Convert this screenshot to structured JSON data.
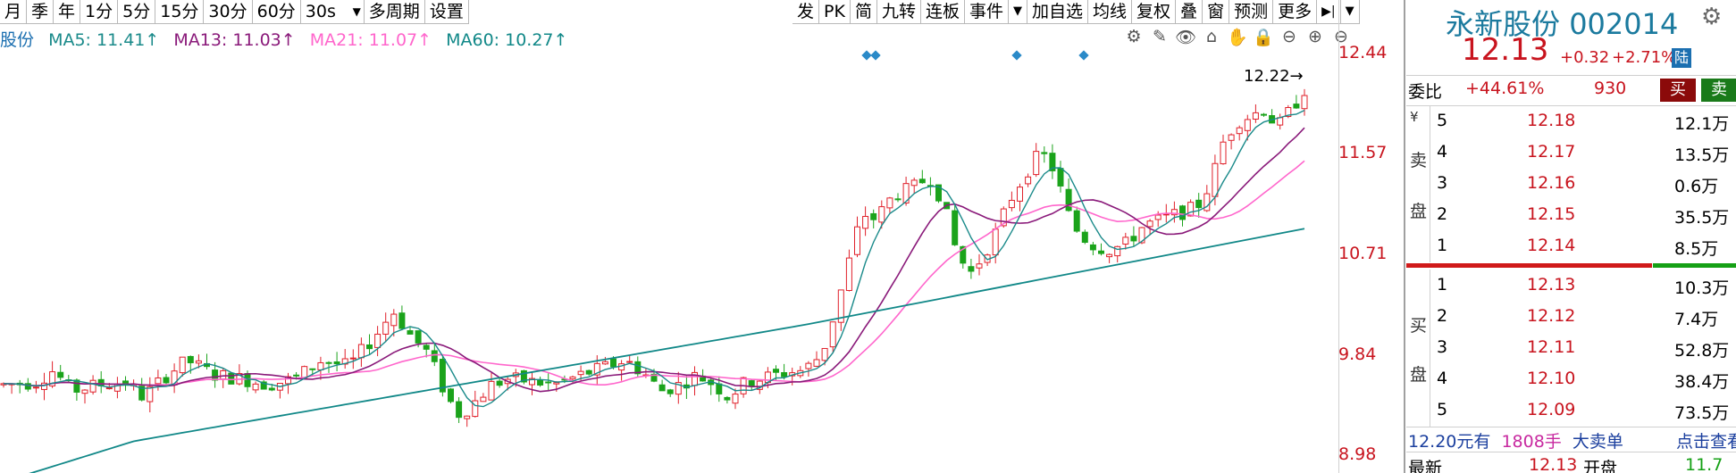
{
  "toolbar": {
    "left": [
      "月",
      "季",
      "年",
      "1分",
      "5分",
      "15分",
      "30分",
      "60分"
    ],
    "select_value": "30s",
    "after_select": [
      "多周期",
      "设置"
    ],
    "right": [
      "发",
      "PK",
      "简",
      "九转",
      "连板",
      "事件",
      "▼",
      "加自选",
      "均线",
      "复权",
      "叠",
      "窗",
      "预测",
      "更多",
      "▶|",
      "▼"
    ]
  },
  "indicators": {
    "name": "股份",
    "ma5": "MA5: 11.41↑",
    "ma13": "MA13: 11.03↑",
    "ma21": "MA21: 11.07↑",
    "ma60": "MA60: 10.27↑"
  },
  "chart_tools": [
    "⚙",
    "✎",
    "👁",
    "⌂",
    "✋",
    "🔒",
    "⊖",
    "⊕",
    "⊖"
  ],
  "chart_data": {
    "type": "candlestick",
    "y_axis_labels": [
      "12.44",
      "11.57",
      "10.71",
      "9.84",
      "8.98"
    ],
    "ylim": [
      8.98,
      12.44
    ],
    "last_price_label": "12.22",
    "ma5_color": "#1a8a8a",
    "ma13_color": "#8a1a7a",
    "ma21_color": "#ff66cc",
    "ma60_color": "#118888",
    "up_color": "#e0202a",
    "down_color": "#1ba31b"
  },
  "quote": {
    "name": "永新股份",
    "code": "002014",
    "price": "12.13",
    "change": "+0.32",
    "change_pct": "+2.71%",
    "badge": "陆"
  },
  "wei": {
    "label": "委比",
    "ratio": "+44.61%",
    "diff": "930",
    "buy": "买",
    "sell": "卖"
  },
  "sell_side_label": [
    "¥",
    "卖",
    "盘"
  ],
  "buy_side_label": [
    "买",
    "盘"
  ],
  "asks": [
    {
      "level": "5",
      "price": "12.18",
      "vol": "12.1万"
    },
    {
      "level": "4",
      "price": "12.17",
      "vol": "13.5万"
    },
    {
      "level": "3",
      "price": "12.16",
      "vol": "0.6万"
    },
    {
      "level": "2",
      "price": "12.15",
      "vol": "35.5万"
    },
    {
      "level": "1",
      "price": "12.14",
      "vol": "8.5万"
    }
  ],
  "bids": [
    {
      "level": "1",
      "price": "12.13",
      "vol": "10.3万"
    },
    {
      "level": "2",
      "price": "12.12",
      "vol": "7.4万"
    },
    {
      "level": "3",
      "price": "12.11",
      "vol": "52.8万"
    },
    {
      "level": "4",
      "price": "12.10",
      "vol": "38.4万"
    },
    {
      "level": "5",
      "price": "12.09",
      "vol": "73.5万"
    }
  ],
  "big_order": {
    "price": "12.20元有",
    "qty": "1808手",
    "type": "大卖单",
    "link": "点击查看"
  },
  "bottom": {
    "latest_label": "最新",
    "latest": "12.13",
    "open_label": "开盘",
    "open": "11.7"
  }
}
